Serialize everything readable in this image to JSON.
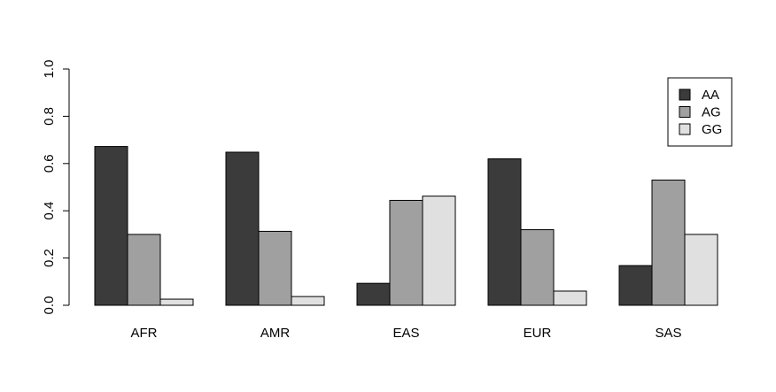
{
  "chart_data": {
    "type": "bar",
    "categories": [
      "AFR",
      "AMR",
      "EAS",
      "EUR",
      "SAS"
    ],
    "series": [
      {
        "name": "AA",
        "color": "#3b3b3b",
        "values": [
          0.672,
          0.648,
          0.093,
          0.62,
          0.168
        ]
      },
      {
        "name": "AG",
        "color": "#a0a0a0",
        "values": [
          0.3,
          0.313,
          0.444,
          0.32,
          0.53
        ]
      },
      {
        "name": "GG",
        "color": "#e0e0e0",
        "values": [
          0.026,
          0.037,
          0.462,
          0.06,
          0.3
        ]
      }
    ],
    "ylim": [
      0,
      1.0
    ],
    "yticks": [
      "0.0",
      "0.2",
      "0.4",
      "0.6",
      "0.8",
      "1.0"
    ],
    "legend_position": "top-right",
    "grid": false,
    "title": "",
    "xlabel": "",
    "ylabel": ""
  }
}
